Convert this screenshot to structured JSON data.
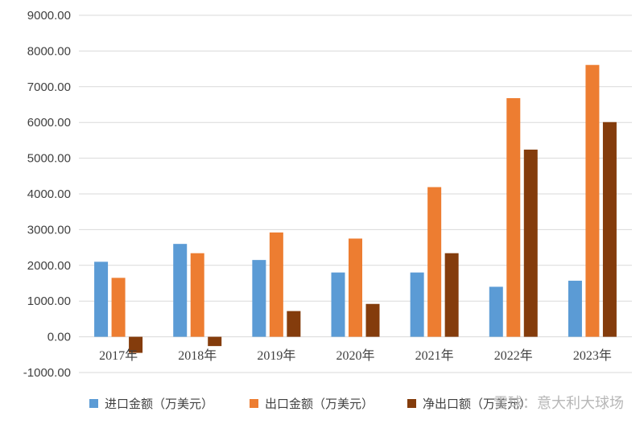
{
  "chart_data": {
    "type": "bar",
    "categories": [
      "2017年",
      "2018年",
      "2019年",
      "2020年",
      "2021年",
      "2022年",
      "2023年"
    ],
    "series": [
      {
        "name": "进口金额（万美元）",
        "color": "#5b9bd5",
        "values": [
          2100,
          2600,
          2150,
          1800,
          1800,
          1400,
          1570
        ]
      },
      {
        "name": "出口金额（万美元）",
        "color": "#ed7d31",
        "values": [
          1650,
          2340,
          2920,
          2750,
          4190,
          6680,
          7610
        ]
      },
      {
        "name": "净出口额（万美元）",
        "color": "#843c0c",
        "values": [
          -450,
          -260,
          720,
          920,
          2340,
          5240,
          6010
        ]
      }
    ],
    "ylim": [
      -1000,
      9000
    ],
    "yticks": [
      "-1000.00",
      "0.00",
      "1000.00",
      "2000.00",
      "3000.00",
      "4000.00",
      "5000.00",
      "6000.00",
      "7000.00",
      "8000.00",
      "9000.00"
    ],
    "ytick_values": [
      -1000,
      0,
      1000,
      2000,
      3000,
      4000,
      5000,
      6000,
      7000,
      8000,
      9000
    ],
    "grid": true,
    "legend_position": "bottom",
    "title": "",
    "xlabel": "",
    "ylabel": ""
  },
  "watermark": "雪球：意大利大球场"
}
